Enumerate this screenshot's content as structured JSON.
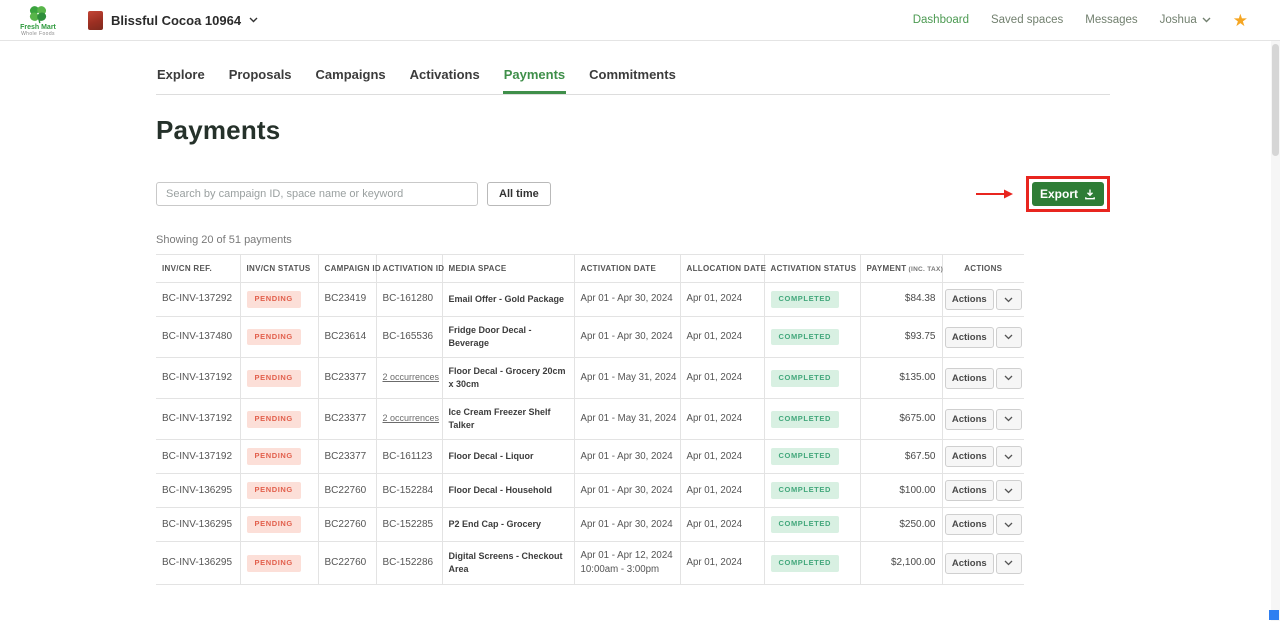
{
  "colors": {
    "accent_green": "#3f8f4a",
    "export_green": "#2e7d36",
    "pending_bg": "#fcdfd8",
    "pending_text": "#e2604d",
    "completed_bg": "#d8f0e2",
    "completed_text": "#43a87c",
    "annotation_red": "#e8251f",
    "star_orange": "#f5a623"
  },
  "header": {
    "brand": {
      "name": "Fresh Mart",
      "tagline": "Whole Foods"
    },
    "account_name": "Blissful Cocoa 10964",
    "nav": [
      {
        "label": "Dashboard"
      },
      {
        "label": "Saved spaces"
      },
      {
        "label": "Messages"
      },
      {
        "label": "Joshua"
      }
    ]
  },
  "tabs": {
    "items": [
      {
        "label": "Explore",
        "active": false
      },
      {
        "label": "Proposals",
        "active": false
      },
      {
        "label": "Campaigns",
        "active": false
      },
      {
        "label": "Activations",
        "active": false
      },
      {
        "label": "Payments",
        "active": true
      },
      {
        "label": "Commitments",
        "active": false
      }
    ]
  },
  "page": {
    "title": "Payments"
  },
  "toolbar": {
    "search_placeholder": "Search by campaign ID, space name or keyword",
    "search_value": "",
    "time_filter_label": "All time",
    "export_label": "Export"
  },
  "summary": {
    "text": "Showing 20 of 51 payments"
  },
  "annotation": {
    "type": "highlight-box-and-arrow",
    "target": "export-button"
  },
  "table": {
    "actions_label": "Actions",
    "columns": [
      {
        "label": "INV/CN REF."
      },
      {
        "label": "INV/CN STATUS"
      },
      {
        "label": "CAMPAIGN ID"
      },
      {
        "label": "ACTIVATION ID"
      },
      {
        "label": "MEDIA SPACE"
      },
      {
        "label": "ACTIVATION DATE"
      },
      {
        "label": "ALLOCATION DATE"
      },
      {
        "label": "ACTIVATION STATUS"
      },
      {
        "label": "PAYMENT",
        "sublabel": "(INC. TAX)"
      },
      {
        "label": "ACTIONS"
      }
    ],
    "rows": [
      {
        "inv_ref": "BC-INV-137292",
        "inv_status": "PENDING",
        "campaign_id": "BC23419",
        "activation_id": "BC-161280",
        "activation_id_is_link": false,
        "media_space": "Email Offer - Gold Package",
        "activation_date": "Apr 01 - Apr 30, 2024",
        "allocation_date": "Apr 01, 2024",
        "activation_status": "COMPLETED",
        "payment": "$84.38"
      },
      {
        "inv_ref": "BC-INV-137480",
        "inv_status": "PENDING",
        "campaign_id": "BC23614",
        "activation_id": "BC-165536",
        "activation_id_is_link": false,
        "media_space": "Fridge Door Decal - Beverage",
        "activation_date": "Apr 01 - Apr 30, 2024",
        "allocation_date": "Apr 01, 2024",
        "activation_status": "COMPLETED",
        "payment": "$93.75"
      },
      {
        "inv_ref": "BC-INV-137192",
        "inv_status": "PENDING",
        "campaign_id": "BC23377",
        "activation_id": "2 occurrences",
        "activation_id_is_link": true,
        "media_space": "Floor Decal - Grocery 20cm x 30cm",
        "activation_date": "Apr 01 - May 31, 2024",
        "allocation_date": "Apr 01, 2024",
        "activation_status": "COMPLETED",
        "payment": "$135.00"
      },
      {
        "inv_ref": "BC-INV-137192",
        "inv_status": "PENDING",
        "campaign_id": "BC23377",
        "activation_id": "2 occurrences",
        "activation_id_is_link": true,
        "media_space": "Ice Cream Freezer Shelf Talker",
        "activation_date": "Apr 01 - May 31, 2024",
        "allocation_date": "Apr 01, 2024",
        "activation_status": "COMPLETED",
        "payment": "$675.00"
      },
      {
        "inv_ref": "BC-INV-137192",
        "inv_status": "PENDING",
        "campaign_id": "BC23377",
        "activation_id": "BC-161123",
        "activation_id_is_link": false,
        "media_space": "Floor Decal - Liquor",
        "activation_date": "Apr 01 - Apr 30, 2024",
        "allocation_date": "Apr 01, 2024",
        "activation_status": "COMPLETED",
        "payment": "$67.50"
      },
      {
        "inv_ref": "BC-INV-136295",
        "inv_status": "PENDING",
        "campaign_id": "BC22760",
        "activation_id": "BC-152284",
        "activation_id_is_link": false,
        "media_space": "Floor Decal - Household",
        "activation_date": "Apr 01 - Apr 30, 2024",
        "allocation_date": "Apr 01, 2024",
        "activation_status": "COMPLETED",
        "payment": "$100.00"
      },
      {
        "inv_ref": "BC-INV-136295",
        "inv_status": "PENDING",
        "campaign_id": "BC22760",
        "activation_id": "BC-152285",
        "activation_id_is_link": false,
        "media_space": "P2 End Cap - Grocery",
        "activation_date": "Apr 01 - Apr 30, 2024",
        "allocation_date": "Apr 01, 2024",
        "activation_status": "COMPLETED",
        "payment": "$250.00"
      },
      {
        "inv_ref": "BC-INV-136295",
        "inv_status": "PENDING",
        "campaign_id": "BC22760",
        "activation_id": "BC-152286",
        "activation_id_is_link": false,
        "media_space": "Digital Screens - Checkout Area",
        "activation_date": "Apr 01 - Apr 12, 2024",
        "activation_time": "10:00am - 3:00pm",
        "allocation_date": "Apr 01, 2024",
        "activation_status": "COMPLETED",
        "payment": "$2,100.00"
      }
    ]
  }
}
